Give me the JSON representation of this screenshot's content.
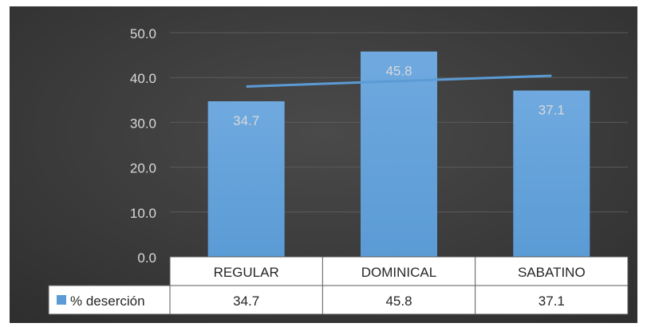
{
  "chart_data": {
    "type": "bar",
    "categories": [
      "REGULAR",
      "DOMINICAL",
      "SABATINO"
    ],
    "series": [
      {
        "name": "% deserción",
        "values": [
          34.7,
          45.8,
          37.1
        ]
      }
    ],
    "data_labels": [
      "34.7",
      "45.8",
      "37.1"
    ],
    "ytick_labels": [
      "0.0",
      "10.0",
      "20.0",
      "30.0",
      "40.0",
      "50.0"
    ],
    "ylim": [
      0,
      50
    ],
    "title": "",
    "xlabel": "",
    "ylabel": "",
    "grid": true,
    "legend": "data-table",
    "data_table": true,
    "trendline": {
      "type": "linear",
      "series": "% deserción"
    },
    "colors": {
      "bar": "#5b9bd5",
      "bar_top": "#6fa9df",
      "trendline": "#5b9bd5",
      "background": "#404040",
      "gridline": "#5a5a5a",
      "text": "#d9d9d9",
      "table_border": "#595959",
      "table_background": "#ffffff",
      "table_text": "#262626"
    }
  }
}
